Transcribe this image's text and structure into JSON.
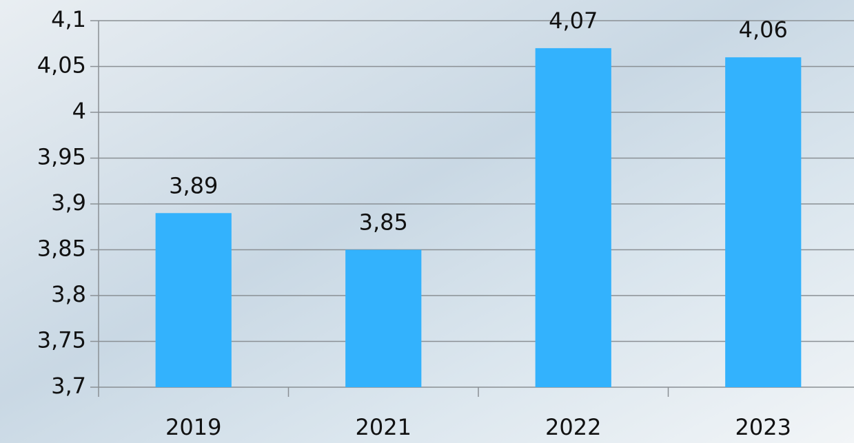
{
  "chart_data": {
    "type": "bar",
    "categories": [
      "2019",
      "2021",
      "2022",
      "2023"
    ],
    "values": [
      3.89,
      3.85,
      4.07,
      4.06
    ],
    "value_labels": [
      "3,89",
      "3,85",
      "4,07",
      "4,06"
    ],
    "color": "#33b2fd",
    "ylim": [
      3.7,
      4.1
    ],
    "yticks": [
      {
        "value": 3.7,
        "label": "3,7"
      },
      {
        "value": 3.75,
        "label": "3,75"
      },
      {
        "value": 3.8,
        "label": "3,8"
      },
      {
        "value": 3.85,
        "label": "3,85"
      },
      {
        "value": 3.9,
        "label": "3,9"
      },
      {
        "value": 3.95,
        "label": "3,95"
      },
      {
        "value": 4,
        "label": "4"
      },
      {
        "value": 4.05,
        "label": "4,05"
      },
      {
        "value": 4.1,
        "label": "4,1"
      }
    ],
    "grid": true
  }
}
